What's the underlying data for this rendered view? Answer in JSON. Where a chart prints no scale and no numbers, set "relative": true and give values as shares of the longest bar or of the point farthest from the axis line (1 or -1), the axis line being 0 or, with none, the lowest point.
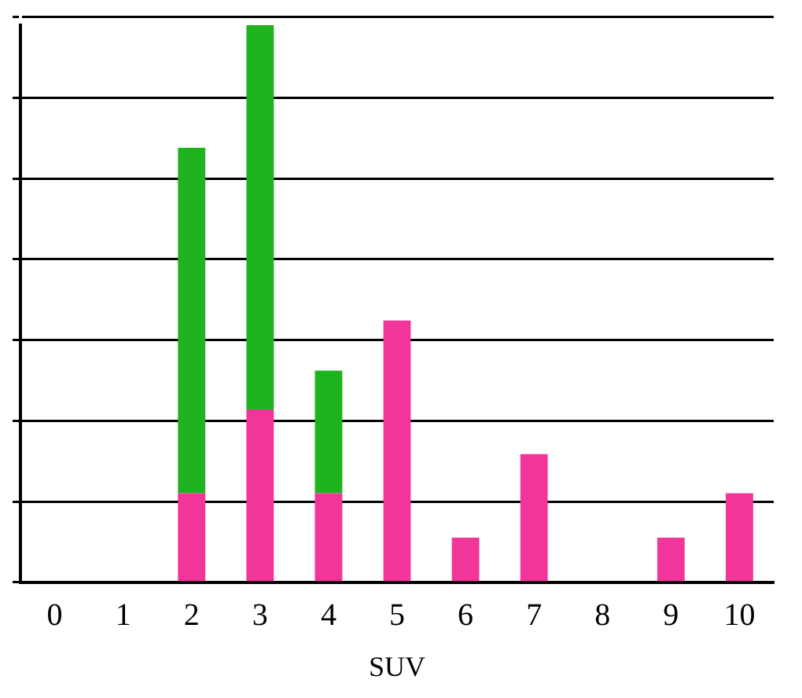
{
  "chart_data": {
    "type": "bar",
    "xlabel": "SUV",
    "categories": [
      "0",
      "1",
      "2",
      "3",
      "4",
      "5",
      "6",
      "7",
      "8",
      "9",
      "10"
    ],
    "stacked": true,
    "relative": true,
    "grid": "y",
    "legend": false,
    "series": [
      {
        "color": "#f2359a",
        "values": [
          0,
          0,
          0.16,
          0.31,
          0.16,
          0.47,
          0.08,
          0.23,
          0,
          0.08,
          0.16
        ]
      },
      {
        "color": "#1fb31f",
        "values": [
          0,
          0,
          0.62,
          0.69,
          0.22,
          0,
          0,
          0,
          0,
          0,
          0
        ]
      }
    ]
  }
}
